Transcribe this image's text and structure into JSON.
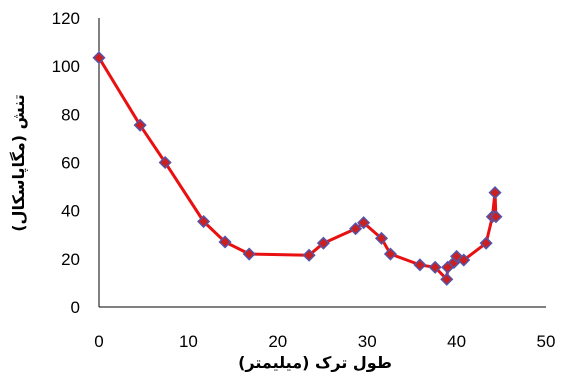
{
  "chart_data": {
    "type": "scatter",
    "title": "",
    "xlabel": "طول ترک (میلیمتر)",
    "ylabel": "تنش (مگاپاسکال)",
    "xlim": [
      0,
      50
    ],
    "ylim": [
      0,
      120
    ],
    "x_ticks": [
      0,
      10,
      20,
      30,
      40,
      50
    ],
    "y_ticks": [
      0,
      20,
      40,
      60,
      80,
      100,
      120
    ],
    "grid": false,
    "legend": "none",
    "line_color": "#e81010",
    "marker_fill": "#cc1f1f",
    "marker_edge": "#5555aa",
    "series": [
      {
        "x": [
          0,
          4.6,
          7.4,
          11.7,
          14.1,
          16.8,
          23.5,
          25.1,
          28.7,
          29.6,
          31.6,
          32.6,
          35.9,
          37.6,
          38.9,
          39.0,
          39.7,
          40.0,
          40.8,
          43.3,
          44.0,
          44.3,
          44.4
        ],
        "y": [
          103.5,
          75.5,
          60,
          35.5,
          27,
          22,
          21.5,
          26.5,
          32.5,
          35,
          28.5,
          22,
          17.5,
          16.5,
          11.5,
          16.5,
          18.5,
          21,
          19.5,
          26.5,
          37.5,
          47.5,
          37.5
        ]
      }
    ]
  }
}
